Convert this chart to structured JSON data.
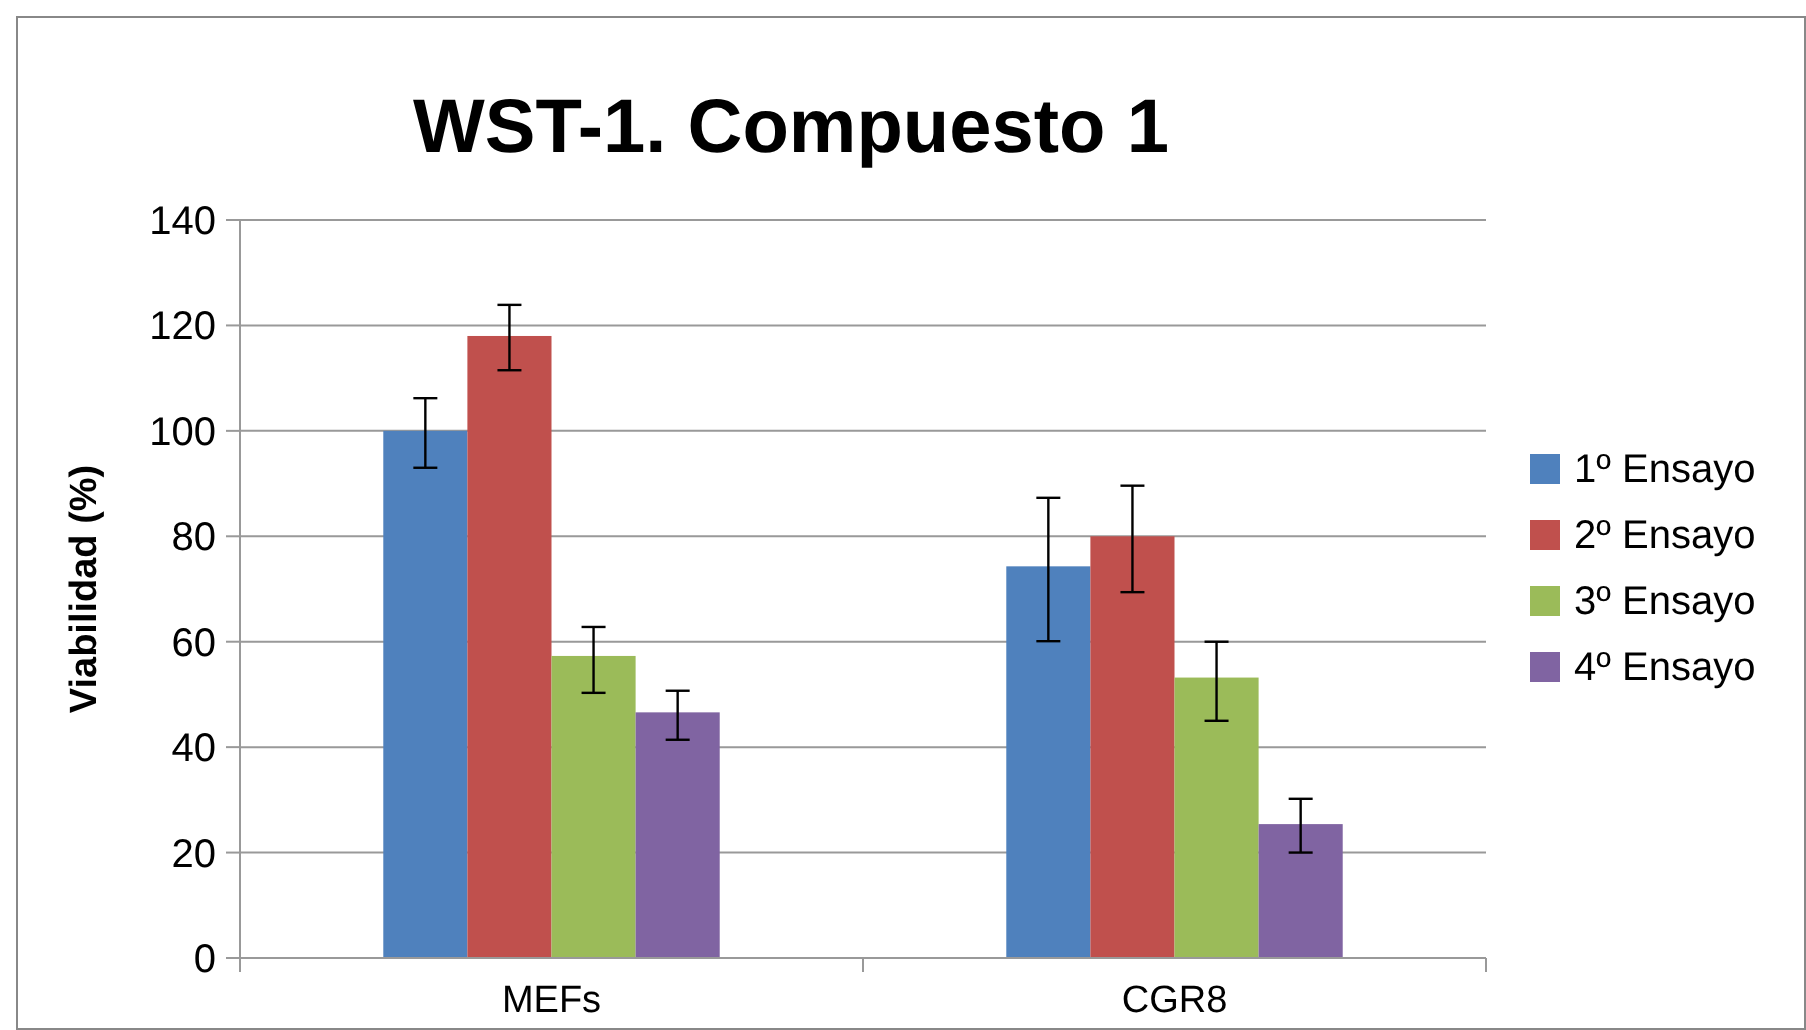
{
  "chart_data": {
    "type": "bar",
    "title": "WST-1. Compuesto 1",
    "ylabel": "Viabilidad (%)",
    "categories": [
      "MEFs",
      "CGR8"
    ],
    "series": [
      {
        "name": "1º Ensayo",
        "color": "#4f81bd",
        "values": [
          100,
          74.3
        ],
        "errors": [
          [
            93,
            106.2
          ],
          [
            60.1,
            87.3
          ]
        ]
      },
      {
        "name": "2º Ensayo",
        "color": "#c0504d",
        "values": [
          118,
          80
        ],
        "errors": [
          [
            111.5,
            123.9
          ],
          [
            69.4,
            89.6
          ]
        ]
      },
      {
        "name": "3º Ensayo",
        "color": "#9bbb59",
        "values": [
          57.3,
          53.2
        ],
        "errors": [
          [
            50.3,
            62.8
          ],
          [
            45,
            60
          ]
        ]
      },
      {
        "name": "4º Ensayo",
        "color": "#8064a2",
        "values": [
          46.6,
          25.4
        ],
        "errors": [
          [
            41.4,
            50.7
          ],
          [
            20,
            30.2
          ]
        ]
      }
    ],
    "ylim": [
      0,
      140
    ],
    "yticks": [
      0,
      20,
      40,
      60,
      80,
      100,
      120,
      140
    ],
    "grid": "y",
    "legend": "right"
  }
}
